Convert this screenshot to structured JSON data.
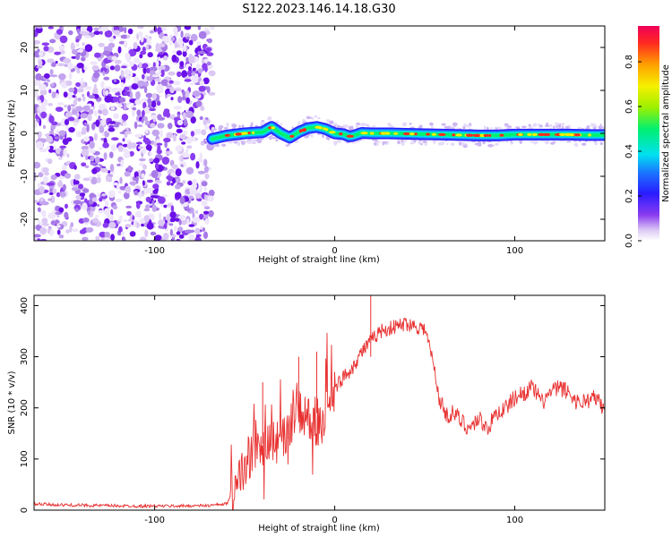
{
  "figure": {
    "title": "S122.2023.146.14.18.G30"
  },
  "chart_data": [
    {
      "type": "heatmap",
      "xlabel": "Height of straight line (km)",
      "ylabel": "Frequency (Hz)",
      "xlim": [
        -167,
        150
      ],
      "ylim": [
        -25,
        25
      ],
      "x_ticks": [
        -100,
        0,
        100
      ],
      "y_ticks": [
        -20,
        -10,
        0,
        10,
        20
      ],
      "regions": [
        {
          "label": "noise",
          "x_range": [
            -167,
            -68
          ],
          "y_range": [
            -25,
            25
          ]
        },
        {
          "label": "signal-trace",
          "x_range": [
            -68,
            150
          ]
        }
      ],
      "trace": {
        "x": [
          -68,
          -60,
          -50,
          -40,
          -35,
          -30,
          -25,
          -20,
          -15,
          -10,
          -5,
          0,
          5,
          8,
          10,
          15,
          20,
          30,
          40,
          50,
          60,
          70,
          80,
          90,
          100,
          110,
          120,
          130,
          140,
          150
        ],
        "y": [
          -1.3,
          -0.5,
          0,
          0.3,
          1.5,
          0,
          -1,
          0.3,
          1.2,
          1.5,
          1,
          0,
          -0.2,
          -0.7,
          -0.6,
          0.1,
          0,
          0,
          -0.1,
          -0.2,
          -0.3,
          -0.4,
          -0.5,
          -0.5,
          -0.3,
          -0.3,
          -0.3,
          -0.3,
          -0.4,
          -0.4
        ]
      },
      "colorbar": {
        "label": "Normalized spectral amplitude",
        "ticks": [
          "0.0",
          "0.2",
          "0.4",
          "0.6",
          "0.8"
        ],
        "range": [
          0,
          0.96
        ]
      }
    },
    {
      "type": "line",
      "xlabel": "Height of straight line (km)",
      "ylabel": "SNR (10 * v/v)",
      "xlim": [
        -167,
        150
      ],
      "ylim": [
        0,
        420
      ],
      "x_ticks": [
        -100,
        0,
        100
      ],
      "y_ticks": [
        0,
        100,
        200,
        300,
        400
      ],
      "series": [
        {
          "color": "#e83030",
          "x": [
            -167,
            -150,
            -130,
            -110,
            -90,
            -70,
            -60,
            -56,
            -50,
            -45,
            -40,
            -35,
            -30,
            -25,
            -20,
            -15,
            -10,
            -5,
            0,
            5,
            10,
            15,
            20,
            25,
            30,
            35,
            40,
            45,
            50,
            54,
            58,
            62,
            66,
            70,
            75,
            80,
            85,
            90,
            95,
            100,
            105,
            110,
            115,
            120,
            125,
            130,
            135,
            140,
            145,
            150
          ],
          "y": [
            12,
            10,
            9,
            8,
            8,
            9,
            12,
            40,
            90,
            120,
            110,
            140,
            130,
            170,
            190,
            180,
            150,
            190,
            240,
            260,
            280,
            310,
            330,
            350,
            355,
            360,
            365,
            360,
            355,
            300,
            220,
            185,
            190,
            175,
            160,
            180,
            160,
            190,
            200,
            220,
            230,
            240,
            210,
            230,
            240,
            230,
            210,
            215,
            220,
            195
          ],
          "spikes": [
            {
              "x": 20,
              "y": 420
            },
            {
              "x": -10,
              "y": 310
            },
            {
              "x": -20,
              "y": 300
            },
            {
              "x": -40,
              "y": 250
            }
          ]
        }
      ]
    }
  ]
}
